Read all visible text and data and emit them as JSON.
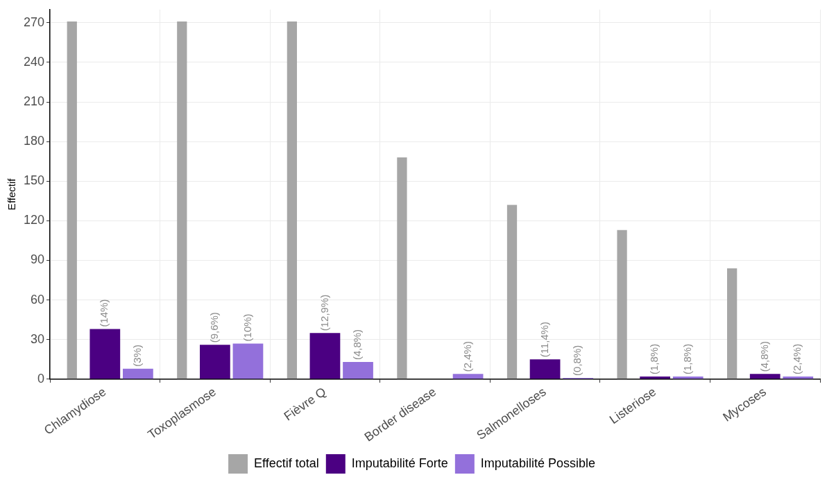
{
  "chart_data": {
    "type": "bar",
    "ylabel": "Effectif",
    "categories": [
      "Chlamydiose",
      "Toxoplasmose",
      "Fièvre Q",
      "Border disease",
      "Salmonelloses",
      "Listeriose",
      "Mycoses"
    ],
    "series": [
      {
        "name": "Effectif total",
        "color": "#a6a6a6",
        "values": [
          271,
          271,
          271,
          168,
          132,
          113,
          84
        ]
      },
      {
        "name": "Imputabilité Forte",
        "color": "#4b0082",
        "values": [
          38,
          26,
          35,
          0,
          15,
          2,
          4
        ]
      },
      {
        "name": "Imputabilité Possible",
        "color": "#9370db",
        "values": [
          8,
          27,
          13,
          4,
          1,
          2,
          2
        ]
      }
    ],
    "annotations": [
      {
        "text": "(14%)",
        "x": "Chlamydiose",
        "y": 38
      },
      "(3%)",
      {
        "text": "(9,6%)",
        "x": "Toxoplasmose",
        "y": 26
      },
      {
        "text": "(10%)",
        "x": "Toxoplasmose",
        "y": 27
      },
      {
        "text": "(12,9%)",
        "x": "Fièvre Q",
        "y": 35
      },
      "(4,8%)",
      "(2,4%)",
      {
        "text": "(11,4%)",
        "x": "Salmonelloses",
        "y": 15
      },
      {
        "text": "(0,8%)",
        "x": "Salmonelloses",
        "y": 1
      },
      {
        "text": "(1,8%)",
        "x": "Listeriose",
        "y": 2
      },
      {
        "text": "(1,8%)",
        "x": "Listeriose",
        "y": 2
      },
      {
        "text": "(4,8%)",
        "x": "Mycoses",
        "y": 4
      },
      {
        "text": "(2,4%)",
        "x": "Mycoses",
        "y": 2
      }
    ],
    "ylim": [
      0,
      280
    ],
    "yticks": [
      0,
      30,
      60,
      90,
      120,
      150,
      180,
      210,
      240,
      270
    ],
    "grid": true,
    "legend": "bottom"
  }
}
